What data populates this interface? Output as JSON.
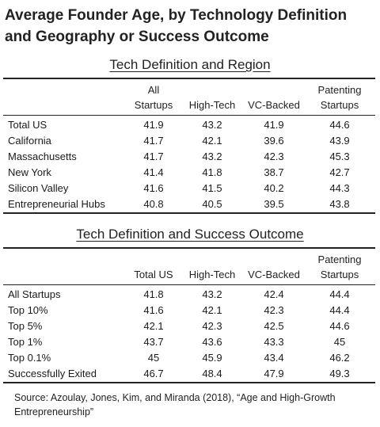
{
  "title": "Average Founder Age, by Technology Definition and Geography or Success Outcome",
  "table1": {
    "heading": "Tech Definition and Region",
    "columns": {
      "c1_line1": "All",
      "c1_line2": "Startups",
      "c2": "High-Tech",
      "c3": "VC-Backed",
      "c4_line1": "Patenting",
      "c4_line2": "Startups"
    },
    "rows": [
      {
        "label": "Total US",
        "all": "41.9",
        "hightech": "43.2",
        "vc": "41.9",
        "patent": "44.6"
      },
      {
        "label": "California",
        "all": "41.7",
        "hightech": "42.1",
        "vc": "39.6",
        "patent": "43.9"
      },
      {
        "label": "Massachusetts",
        "all": "41.7",
        "hightech": "43.2",
        "vc": "42.3",
        "patent": "45.3"
      },
      {
        "label": "New York",
        "all": "41.4",
        "hightech": "41.8",
        "vc": "38.7",
        "patent": "42.7"
      },
      {
        "label": "Silicon Valley",
        "all": "41.6",
        "hightech": "41.5",
        "vc": "40.2",
        "patent": "44.3"
      },
      {
        "label": "Entrepreneurial Hubs",
        "all": "40.8",
        "hightech": "40.5",
        "vc": "39.5",
        "patent": "43.8"
      }
    ]
  },
  "table2": {
    "heading": "Tech Definition and Success Outcome",
    "columns": {
      "c1": "Total US",
      "c2": "High-Tech",
      "c3": "VC-Backed",
      "c4_line1": "Patenting",
      "c4_line2": "Startups"
    },
    "rows": [
      {
        "label": "All Startups",
        "all": "41.8",
        "hightech": "43.2",
        "vc": "42.4",
        "patent": "44.4"
      },
      {
        "label": "Top 10%",
        "all": "41.6",
        "hightech": "42.1",
        "vc": "42.3",
        "patent": "44.4"
      },
      {
        "label": "Top 5%",
        "all": "42.1",
        "hightech": "42.3",
        "vc": "42.5",
        "patent": "44.6"
      },
      {
        "label": "Top 1%",
        "all": "43.7",
        "hightech": "43.6",
        "vc": "43.3",
        "patent": "45"
      },
      {
        "label": "Top 0.1%",
        "all": "45",
        "hightech": "45.9",
        "vc": "43.4",
        "patent": "46.2"
      },
      {
        "label": "Successfully Exited",
        "all": "46.7",
        "hightech": "48.4",
        "vc": "47.9",
        "patent": "49.3"
      }
    ]
  },
  "source": "Source: Azoulay, Jones, Kim, and Miranda (2018), “Age and High-Growth Entrepreneurship”"
}
